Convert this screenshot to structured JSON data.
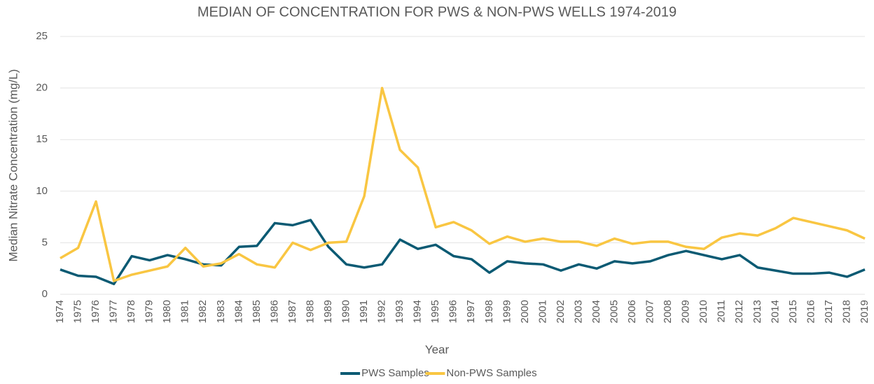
{
  "chart_data": {
    "type": "line",
    "title": "MEDIAN OF CONCENTRATION FOR PWS & NON-PWS WELLS 1974-2019",
    "x_label": "Year",
    "y_label": "Median Nitrate Concentration (mg/L)",
    "categories": [
      "1974",
      "1975",
      "1976",
      "1977",
      "1978",
      "1979",
      "1980",
      "1981",
      "1982",
      "1983",
      "1984",
      "1985",
      "1986",
      "1987",
      "1988",
      "1989",
      "1990",
      "1991",
      "1992",
      "1993",
      "1994",
      "1995",
      "1996",
      "1997",
      "1998",
      "1999",
      "2000",
      "2001",
      "2002",
      "2003",
      "2004",
      "2005",
      "2006",
      "2007",
      "2008",
      "2009",
      "2010",
      "2011",
      "2012",
      "2013",
      "2014",
      "2015",
      "2016",
      "2017",
      "2018",
      "2019"
    ],
    "series": [
      {
        "name": "PWS Samples",
        "color": "#0b5a73",
        "values": [
          2.4,
          1.8,
          1.7,
          1.0,
          3.7,
          3.3,
          3.8,
          3.4,
          2.9,
          2.8,
          4.6,
          4.7,
          6.9,
          6.7,
          7.2,
          4.6,
          2.9,
          2.6,
          2.9,
          5.3,
          4.4,
          4.8,
          3.7,
          3.4,
          2.1,
          3.2,
          3.0,
          2.9,
          2.3,
          2.9,
          2.5,
          3.2,
          3.0,
          3.2,
          3.8,
          4.2,
          3.8,
          3.4,
          3.8,
          2.6,
          2.3,
          2.0,
          2.0,
          2.1,
          1.7,
          2.4
        ]
      },
      {
        "name": "Non-PWS Samples",
        "color": "#f9c642",
        "values": [
          3.5,
          4.5,
          9.0,
          1.3,
          1.9,
          2.3,
          2.7,
          4.5,
          2.7,
          3.0,
          3.9,
          2.9,
          2.6,
          5.0,
          4.3,
          5.0,
          5.1,
          9.5,
          20.0,
          14.0,
          12.3,
          6.5,
          7.0,
          6.2,
          4.9,
          5.6,
          5.1,
          5.4,
          5.1,
          5.1,
          4.7,
          5.4,
          4.9,
          5.1,
          5.1,
          4.6,
          4.4,
          5.5,
          5.9,
          5.7,
          6.4,
          7.4,
          7.0,
          6.6,
          6.2,
          5.4
        ]
      }
    ],
    "ylim": [
      0,
      25
    ],
    "yticks": [
      0,
      5,
      10,
      15,
      20,
      25
    ],
    "grid": true,
    "legend": "bottom"
  }
}
